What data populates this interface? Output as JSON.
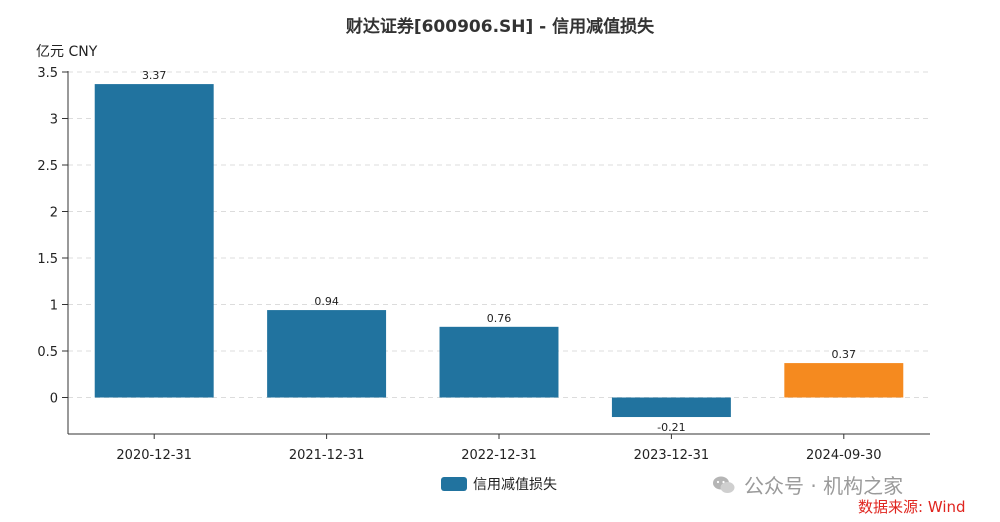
{
  "chart_data": {
    "type": "bar",
    "title": "财达证券[600906.SH] - 信用减值损失",
    "unit_label": "亿元  CNY",
    "categories": [
      "2020-12-31",
      "2021-12-31",
      "2022-12-31",
      "2023-12-31",
      "2024-09-30"
    ],
    "series": [
      {
        "name": "信用减值损失",
        "values": [
          3.37,
          0.94,
          0.76,
          -0.21,
          0.37
        ]
      }
    ],
    "data_labels": [
      "3.37",
      "0.94",
      "0.76",
      "-0.21",
      "0.37"
    ],
    "bar_colors": [
      "#21739f",
      "#21739f",
      "#21739f",
      "#21739f",
      "#f58a1f"
    ],
    "yticks": [
      0,
      0.5,
      1,
      1.5,
      2,
      2.5,
      3,
      3.5
    ],
    "ytick_labels": [
      "0",
      "0.5",
      "1",
      "1.5",
      "2",
      "2.5",
      "3",
      "3.5"
    ],
    "ylim": [
      -0.4,
      3.5
    ],
    "grid": true,
    "legend_position": "bottom-center"
  },
  "legend": {
    "label": "信用减值损失",
    "color": "#21739f"
  },
  "watermark": "公众号 · 机构之家",
  "source": "数据来源: Wind"
}
